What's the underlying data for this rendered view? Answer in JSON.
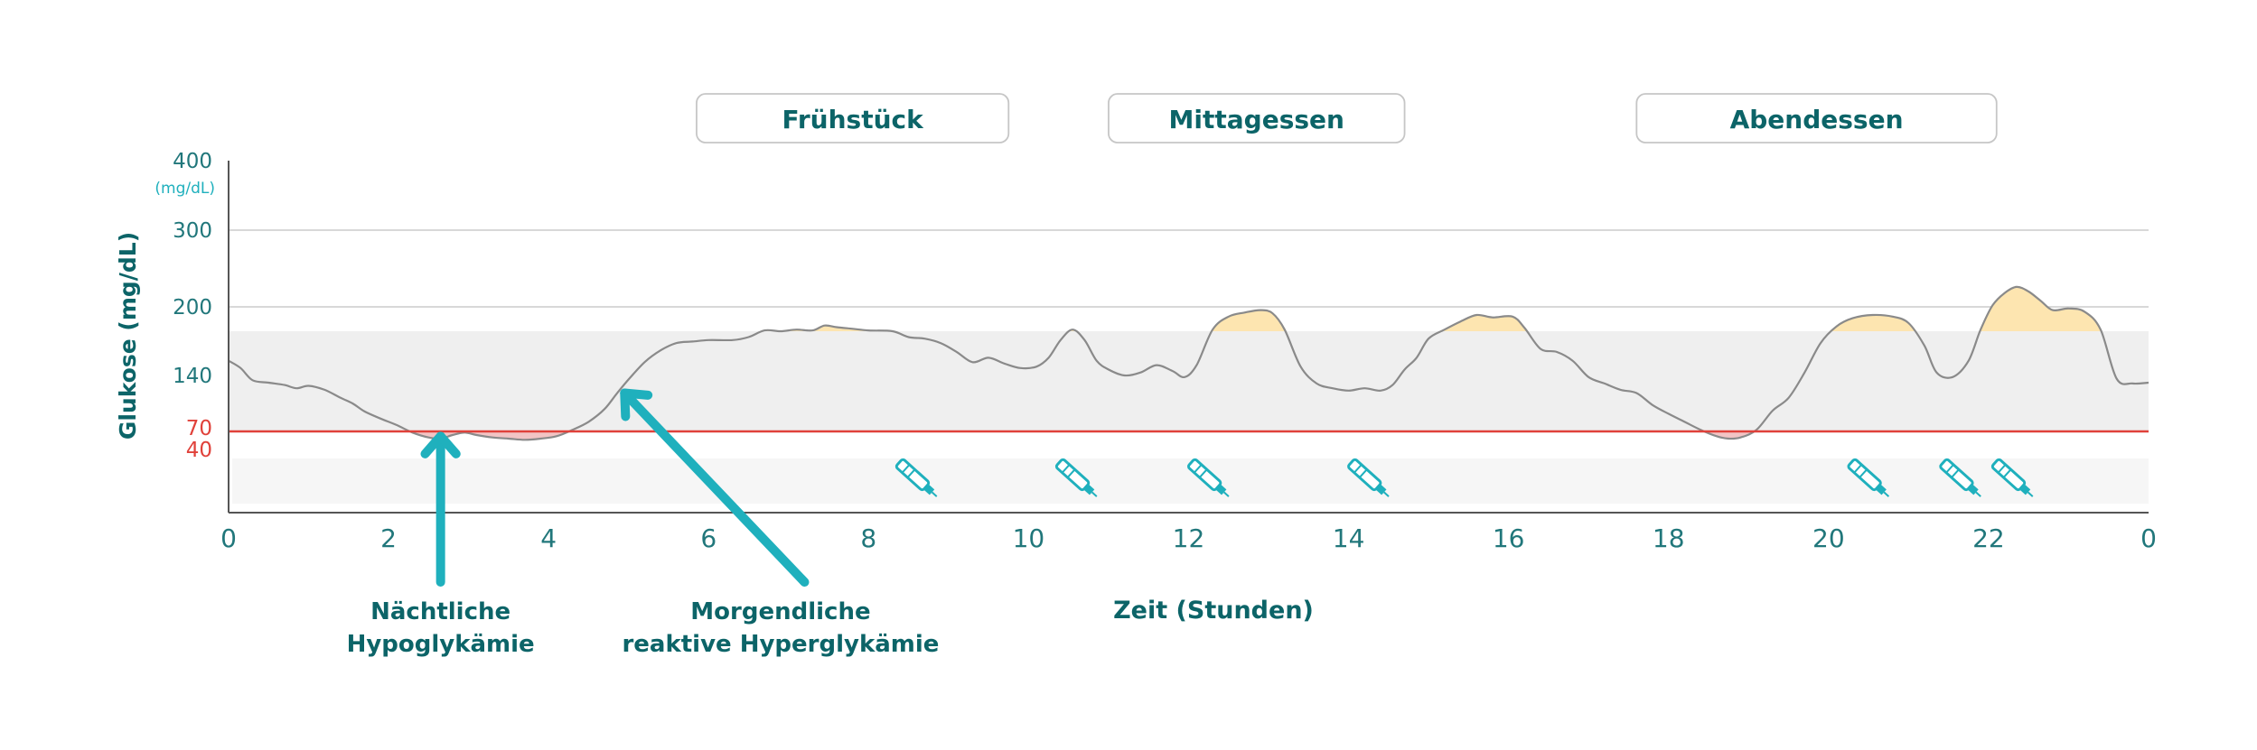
{
  "chart_data": {
    "type": "line",
    "ylabel": "Glukose (mg/dL)",
    "xlabel": "Zeit (Stunden)",
    "x_ticks": [
      "0",
      "2",
      "4",
      "6",
      "8",
      "10",
      "12",
      "14",
      "16",
      "18",
      "20",
      "22",
      "0"
    ],
    "y_ticks": [
      {
        "value": 400,
        "label": "400",
        "unit": "(mg/dL)"
      },
      {
        "value": 300,
        "label": "300",
        "unit": ""
      },
      {
        "value": 200,
        "label": "200",
        "unit": ""
      },
      {
        "value": 140,
        "label": "140",
        "unit": ""
      },
      {
        "value": 70,
        "label": "70",
        "unit": ""
      },
      {
        "value": 40,
        "label": "40",
        "unit": ""
      }
    ],
    "xlim": [
      0,
      24
    ],
    "target_range": [
      70,
      170
    ],
    "hypo_threshold": 70,
    "meals": [
      {
        "label": "Frühstück",
        "start": 5.85,
        "end": 9.75
      },
      {
        "label": "Mittagessen",
        "start": 11.0,
        "end": 14.7
      },
      {
        "label": "Abendessen",
        "start": 17.6,
        "end": 22.1
      }
    ],
    "insulin_pens_x": [
      8.6,
      10.6,
      12.25,
      14.25,
      20.5,
      21.65,
      22.3
    ],
    "annotations": [
      {
        "lines": [
          "Nächtliche",
          "Hypoglykämie"
        ],
        "arrow_from": [
          2.65,
          -95
        ],
        "arrow_to": [
          2.65,
          62
        ],
        "text_x": 2.65
      },
      {
        "lines": [
          "Morgendliche",
          "reaktive Hyperglykämie"
        ],
        "arrow_from": [
          7.2,
          -95
        ],
        "arrow_to": [
          4.95,
          118
        ],
        "text_x": 6.9
      }
    ],
    "glucose": [
      [
        0.0,
        150
      ],
      [
        0.15,
        145
      ],
      [
        0.3,
        134
      ],
      [
        0.5,
        131
      ],
      [
        0.7,
        128
      ],
      [
        0.85,
        124
      ],
      [
        1.0,
        127
      ],
      [
        1.2,
        122
      ],
      [
        1.4,
        112
      ],
      [
        1.55,
        105
      ],
      [
        1.7,
        95
      ],
      [
        1.9,
        86
      ],
      [
        2.1,
        78
      ],
      [
        2.3,
        68
      ],
      [
        2.5,
        60
      ],
      [
        2.65,
        58
      ],
      [
        2.8,
        64
      ],
      [
        2.95,
        68
      ],
      [
        3.1,
        64
      ],
      [
        3.3,
        60
      ],
      [
        3.5,
        58
      ],
      [
        3.7,
        56
      ],
      [
        3.9,
        58
      ],
      [
        4.1,
        62
      ],
      [
        4.3,
        72
      ],
      [
        4.5,
        82
      ],
      [
        4.7,
        98
      ],
      [
        4.85,
        117
      ],
      [
        5.0,
        135
      ],
      [
        5.2,
        149
      ],
      [
        5.4,
        157
      ],
      [
        5.6,
        162
      ],
      [
        5.8,
        163
      ],
      [
        6.0,
        164
      ],
      [
        6.3,
        164
      ],
      [
        6.5,
        166
      ],
      [
        6.7,
        171
      ],
      [
        6.9,
        170
      ],
      [
        7.1,
        172
      ],
      [
        7.3,
        171
      ],
      [
        7.45,
        177
      ],
      [
        7.6,
        175
      ],
      [
        7.8,
        173
      ],
      [
        8.0,
        171
      ],
      [
        8.3,
        170
      ],
      [
        8.5,
        166
      ],
      [
        8.7,
        165
      ],
      [
        8.9,
        162
      ],
      [
        9.1,
        156
      ],
      [
        9.3,
        149
      ],
      [
        9.5,
        152
      ],
      [
        9.7,
        148
      ],
      [
        9.9,
        145
      ],
      [
        10.1,
        146
      ],
      [
        10.25,
        152
      ],
      [
        10.4,
        164
      ],
      [
        10.55,
        172
      ],
      [
        10.7,
        164
      ],
      [
        10.85,
        150
      ],
      [
        11.0,
        144
      ],
      [
        11.2,
        140
      ],
      [
        11.4,
        142
      ],
      [
        11.6,
        147
      ],
      [
        11.8,
        143
      ],
      [
        11.95,
        138
      ],
      [
        12.1,
        147
      ],
      [
        12.3,
        172
      ],
      [
        12.5,
        188
      ],
      [
        12.7,
        193
      ],
      [
        12.9,
        196
      ],
      [
        13.05,
        192
      ],
      [
        13.2,
        172
      ],
      [
        13.4,
        146
      ],
      [
        13.6,
        130
      ],
      [
        13.8,
        124
      ],
      [
        14.0,
        121
      ],
      [
        14.2,
        124
      ],
      [
        14.4,
        121
      ],
      [
        14.55,
        128
      ],
      [
        14.7,
        144
      ],
      [
        14.85,
        152
      ],
      [
        15.0,
        165
      ],
      [
        15.2,
        172
      ],
      [
        15.4,
        182
      ],
      [
        15.6,
        190
      ],
      [
        15.8,
        187
      ],
      [
        16.05,
        188
      ],
      [
        16.2,
        174
      ],
      [
        16.4,
        158
      ],
      [
        16.6,
        156
      ],
      [
        16.8,
        150
      ],
      [
        17.0,
        138
      ],
      [
        17.2,
        130
      ],
      [
        17.4,
        122
      ],
      [
        17.6,
        118
      ],
      [
        17.8,
        103
      ],
      [
        18.0,
        92
      ],
      [
        18.2,
        82
      ],
      [
        18.4,
        72
      ],
      [
        18.6,
        62
      ],
      [
        18.75,
        58
      ],
      [
        18.9,
        60
      ],
      [
        19.1,
        72
      ],
      [
        19.3,
        96
      ],
      [
        19.5,
        112
      ],
      [
        19.7,
        142
      ],
      [
        19.9,
        162
      ],
      [
        20.1,
        176
      ],
      [
        20.3,
        186
      ],
      [
        20.55,
        190
      ],
      [
        20.8,
        188
      ],
      [
        21.0,
        180
      ],
      [
        21.2,
        160
      ],
      [
        21.35,
        142
      ],
      [
        21.55,
        138
      ],
      [
        21.75,
        150
      ],
      [
        21.9,
        172
      ],
      [
        22.05,
        202
      ],
      [
        22.2,
        218
      ],
      [
        22.35,
        226
      ],
      [
        22.5,
        220
      ],
      [
        22.65,
        208
      ],
      [
        22.8,
        196
      ],
      [
        23.0,
        198
      ],
      [
        23.2,
        194
      ],
      [
        23.4,
        172
      ],
      [
        23.6,
        136
      ],
      [
        23.8,
        130
      ],
      [
        24.0,
        131
      ]
    ],
    "colors": {
      "teal": "#1fb0bd",
      "dark_teal": "#0c6468",
      "axis_teal": "#21777b",
      "red": "#e0413a",
      "hypo_fill": "#f2c4c4",
      "hyper_fill": "#fde5b0",
      "target_band": "#efefef",
      "low_band": "#f6f6f6",
      "grid": "#cccccc",
      "line": "#8a8a8a"
    }
  }
}
